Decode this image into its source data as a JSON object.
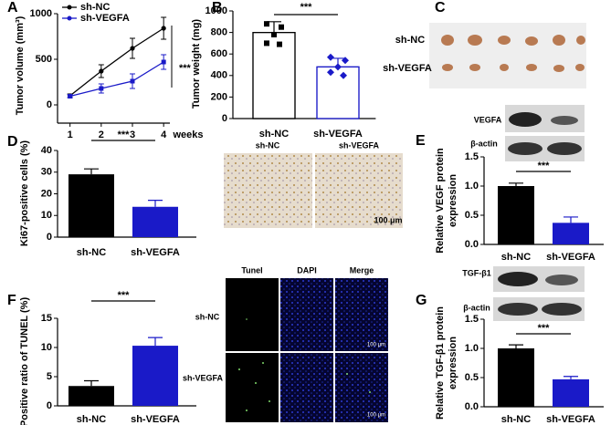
{
  "chart_data": [
    {
      "type": "line",
      "panel": "A",
      "ylabel": [
        "Tumor volume (mm³)"
      ],
      "xlabel": "weeks",
      "x": [
        1,
        2,
        3,
        4
      ],
      "xlim": [
        0.6,
        4.2
      ],
      "xticks": [
        1,
        2,
        3,
        4
      ],
      "ylim": [
        -200,
        1000
      ],
      "yticks": [
        0,
        500,
        1000
      ],
      "annotation": "***",
      "legend": "top-left",
      "series": [
        {
          "name": "sh-NC",
          "color": "#000000",
          "values": [
            100,
            370,
            620,
            840
          ],
          "errors": [
            20,
            70,
            110,
            120
          ]
        },
        {
          "name": "sh-VEGFA",
          "color": "#1a1ac8",
          "values": [
            95,
            180,
            260,
            470
          ],
          "errors": [
            15,
            50,
            80,
            80
          ]
        }
      ]
    },
    {
      "type": "bar",
      "panel": "B",
      "ylabel": [
        "Tumor weight (mg)"
      ],
      "categories": [
        "sh-NC",
        "sh-VEGFA"
      ],
      "values": [
        800,
        480
      ],
      "errors": [
        100,
        80
      ],
      "fill": "#ffffff",
      "colors": [
        "#000000",
        "#1a1ac8"
      ],
      "points": [
        [
          880,
          850,
          780,
          700,
          690
        ],
        [
          570,
          540,
          480,
          430,
          400
        ]
      ],
      "ylim": [
        0,
        1000
      ],
      "yticks": [
        0,
        200,
        400,
        600,
        800,
        1000
      ],
      "annotation": "***"
    },
    {
      "type": "bar",
      "panel": "D",
      "ylabel": [
        "Ki67-positive cells (%)"
      ],
      "categories": [
        "sh-NC",
        "sh-VEGFA"
      ],
      "values": [
        29,
        14
      ],
      "errors": [
        2.5,
        3
      ],
      "colors": [
        "#000000",
        "#1a1ac8"
      ],
      "ylim": [
        0,
        40
      ],
      "yticks": [
        0,
        10,
        20,
        30,
        40
      ],
      "annotation": "***"
    },
    {
      "type": "bar",
      "panel": "E",
      "ylabel": [
        "Relative VEGF protein",
        "expression"
      ],
      "categories": [
        "sh-NC",
        "sh-VEGFA"
      ],
      "values": [
        1.0,
        0.37
      ],
      "errors": [
        0.05,
        0.1
      ],
      "colors": [
        "#000000",
        "#1a1ac8"
      ],
      "ylim": [
        0,
        1.5
      ],
      "yticks": [
        {
          "value": 0,
          "label": "0.0"
        },
        0.5,
        {
          "value": 1,
          "label": "1.0"
        },
        1.5
      ],
      "annotation": "***"
    },
    {
      "type": "bar",
      "panel": "F",
      "ylabel": [
        "Positive ratio of TUNEL (%)"
      ],
      "categories": [
        "sh-NC",
        "sh-VEGFA"
      ],
      "values": [
        3.4,
        10.3
      ],
      "errors": [
        0.9,
        1.4
      ],
      "colors": [
        "#000000",
        "#1a1ac8"
      ],
      "ylim": [
        0,
        15
      ],
      "yticks": [
        0,
        5,
        10,
        15
      ],
      "annotation": "***"
    },
    {
      "type": "bar",
      "panel": "G",
      "ylabel": [
        "Relative TGF-β1 protein",
        "expression"
      ],
      "categories": [
        "sh-NC",
        "sh-VEGFA"
      ],
      "values": [
        1.0,
        0.47
      ],
      "errors": [
        0.06,
        0.05
      ],
      "colors": [
        "#000000",
        "#1a1ac8"
      ],
      "ylim": [
        0,
        1.5
      ],
      "yticks": [
        {
          "value": 0,
          "label": "0.0"
        },
        0.5,
        {
          "value": 1,
          "label": "1.0"
        },
        1.5
      ],
      "annotation": "***"
    }
  ],
  "images": [
    {
      "panel": "C",
      "labels": [
        "sh-NC",
        "sh-VEGFA"
      ]
    },
    {
      "labels": [
        "sh-NC",
        "sh-VEGFA"
      ],
      "scale": "100 μm"
    },
    {
      "labels": [
        "VEGFA",
        "β-actin"
      ]
    },
    {
      "columns": [
        "Tunel",
        "DAPI",
        "Merge"
      ],
      "rows": [
        "sh-NC",
        "sh-VEGFA"
      ],
      "scale": "100 μm"
    },
    {
      "labels": [
        "TGF-β1",
        "β-actin"
      ]
    }
  ]
}
